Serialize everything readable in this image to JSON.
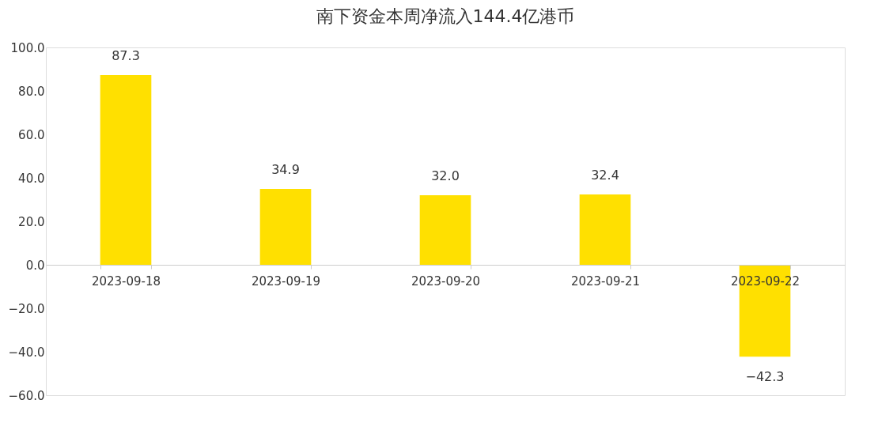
{
  "chart_data": {
    "type": "bar",
    "title": "南下资金本周净流入144.4亿港币",
    "categories": [
      "2023-09-18",
      "2023-09-19",
      "2023-09-20",
      "2023-09-21",
      "2023-09-22"
    ],
    "values": [
      87.3,
      34.9,
      32.0,
      32.4,
      -42.3
    ],
    "value_labels": [
      "87.3",
      "34.9",
      "32.0",
      "32.4",
      "−42.3"
    ],
    "color": "#ffe000",
    "ylim": [
      -60,
      100
    ],
    "yticks": [
      {
        "value": -60,
        "label": "−60.0"
      },
      {
        "value": -40,
        "label": "−40.0"
      },
      {
        "value": -20,
        "label": "−20.0"
      },
      {
        "value": 0,
        "label": "0.0"
      },
      {
        "value": 20,
        "label": "20.0"
      },
      {
        "value": 40,
        "label": "40.0"
      },
      {
        "value": 60,
        "label": "60.0"
      },
      {
        "value": 80,
        "label": "80.0"
      },
      {
        "value": 100,
        "label": "100.0"
      }
    ],
    "grid": false
  }
}
